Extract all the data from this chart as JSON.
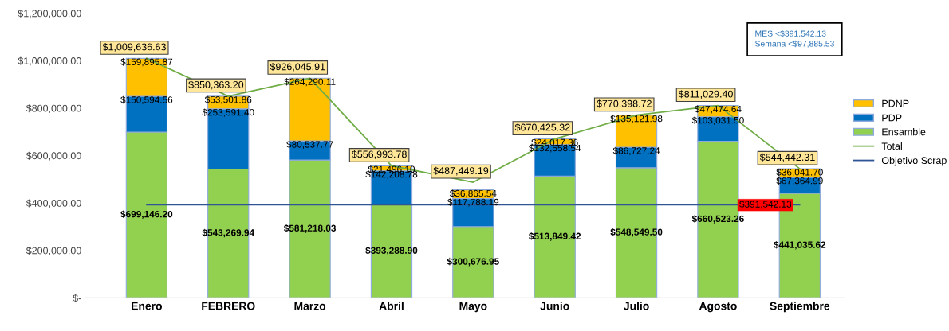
{
  "chart_data": {
    "type": "bar",
    "stacked": true,
    "categories": [
      "Enero",
      "FEBRERO",
      "Marzo",
      "Abril",
      "Mayo",
      "Junio",
      "Julio",
      "Agosto",
      "Septiembre"
    ],
    "series": [
      {
        "name": "Ensamble",
        "color": "#92d050",
        "values": [
          699146.2,
          543269.94,
          581218.03,
          393288.9,
          300676.95,
          513849.42,
          548549.5,
          660523.26,
          441035.62
        ],
        "value_labels": [
          "$699,146.20",
          "$543,269.94",
          "$581,218.03",
          "$393,288.90",
          "$300,676.95",
          "$513,849.42",
          "$548,549.50",
          "$660,523.26",
          "$441,035.62"
        ]
      },
      {
        "name": "PDP",
        "color": "#0070c0",
        "values": [
          150594.56,
          253591.4,
          80537.77,
          142208.78,
          117788.19,
          132558.54,
          86727.24,
          103031.5,
          67364.99
        ],
        "value_labels": [
          "$150,594.56",
          "$253,591.40",
          "$80,537.77",
          "$142,208.78",
          "$117,788.19",
          "$132,558.54",
          "$86,727.24",
          "$103,031.50",
          "$67,364.99"
        ]
      },
      {
        "name": "PDNP",
        "color": "#ffc000",
        "values": [
          159895.87,
          53501.86,
          264290.11,
          21496.1,
          36865.54,
          24017.36,
          135121.98,
          47474.64,
          36041.7
        ],
        "value_labels": [
          "$159,895.87",
          "$53,501.86",
          "$264,290.11",
          "$21,496.10",
          "$36,865.54",
          "$24,017.36",
          "$135,121.98",
          "$47,474.64",
          "$36,041.70"
        ]
      },
      {
        "name": "Total",
        "type": "line",
        "color": "#70ad47",
        "values": [
          1009636.63,
          850363.2,
          926045.91,
          556993.78,
          487449.19,
          670425.32,
          770398.72,
          811029.4,
          544442.31
        ],
        "value_labels": [
          "$1,009,636.63",
          "$850,363.20",
          "$926,045.91",
          "$556,993.78",
          "$487,449.19",
          "$670,425.32",
          "$770,398.72",
          "$811,029.40",
          "$544,442.31"
        ]
      },
      {
        "name": "Objetivo Scrap",
        "type": "line",
        "color": "#2f5597",
        "values": [
          391542.13,
          391542.13,
          391542.13,
          391542.13,
          391542.13,
          391542.13,
          391542.13,
          391542.13,
          391542.13
        ],
        "value_labels": [
          null,
          null,
          null,
          null,
          null,
          null,
          null,
          null,
          "$391,542.13"
        ]
      }
    ],
    "ylim": [
      0,
      1200000
    ],
    "yticks": [
      {
        "value": 0,
        "label": "$-"
      },
      {
        "value": 200000,
        "label": "$200,000.00"
      },
      {
        "value": 400000,
        "label": "$400,000.00"
      },
      {
        "value": 600000,
        "label": "$600,000.00"
      },
      {
        "value": 800000,
        "label": "$800,000.00"
      },
      {
        "value": 1000000,
        "label": "$1,000,000.00"
      },
      {
        "value": 1200000,
        "label": "$1,200,000.00"
      }
    ],
    "annotations": [
      "MES <$391,542.13",
      "Semana <$97,885.53"
    ],
    "grid": false,
    "legend": "right",
    "marker": "none"
  }
}
